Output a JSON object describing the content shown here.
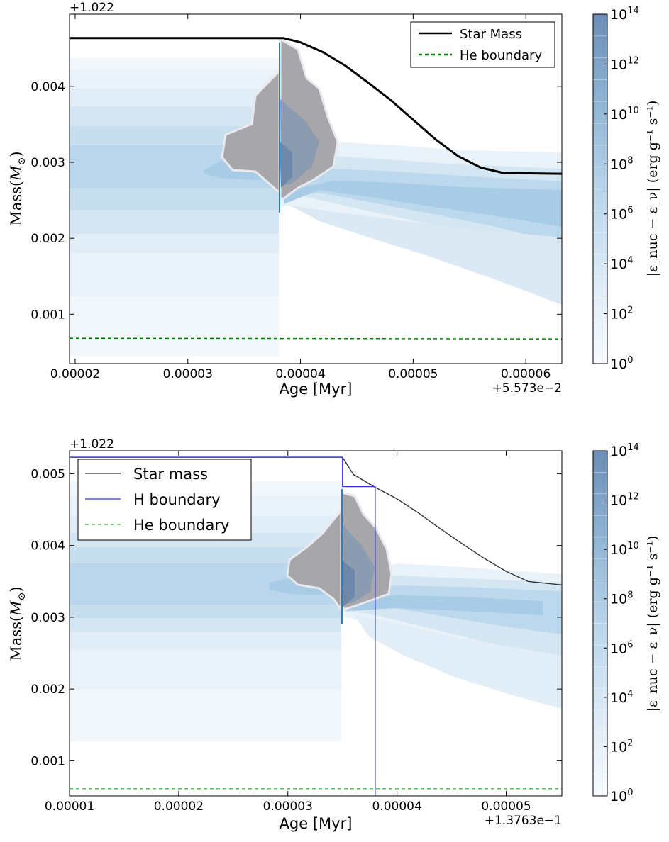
{
  "chart_data": [
    {
      "type": "area",
      "title": "",
      "xlabel": "Age [Myr]",
      "ylabel": "Mass(M_⊙)",
      "x_offset_label": "+5.573e−2",
      "y_offset_label": "+1.022",
      "xlim": [
        1.95e-05,
        6.32e-05
      ],
      "ylim": [
        0.00035,
        0.00495
      ],
      "xticks": [
        {
          "value": 2e-05,
          "label": "0.00002"
        },
        {
          "value": 3e-05,
          "label": "0.00003"
        },
        {
          "value": 4e-05,
          "label": "0.00004"
        },
        {
          "value": 5e-05,
          "label": "0.00005"
        },
        {
          "value": 6e-05,
          "label": "0.00006"
        }
      ],
      "yticks": [
        {
          "value": 0.001,
          "label": "0.001"
        },
        {
          "value": 0.002,
          "label": "0.002"
        },
        {
          "value": 0.003,
          "label": "0.003"
        },
        {
          "value": 0.004,
          "label": "0.004"
        }
      ],
      "legend_position": "top-right",
      "grid": false,
      "colors": {
        "star_mass": "#000000",
        "he_boundary": "#008000",
        "burning": "#5b9bd5",
        "flash": "#9a9aa0"
      },
      "series": [
        {
          "name": "Star Mass",
          "style": "solid",
          "x": [
            1.95e-05,
            3.85e-05,
            4e-05,
            4.2e-05,
            4.4e-05,
            4.6e-05,
            4.8e-05,
            5e-05,
            5.2e-05,
            5.4e-05,
            5.6e-05,
            5.8e-05,
            6.32e-05
          ],
          "y": [
            0.004635,
            0.004635,
            0.00458,
            0.00445,
            0.00427,
            0.00405,
            0.00382,
            0.00356,
            0.0033,
            0.00308,
            0.00293,
            0.00286,
            0.00285
          ]
        },
        {
          "name": "He boundary",
          "style": "dashed",
          "x": [
            1.95e-05,
            6.32e-05
          ],
          "y": [
            0.00068,
            0.00067
          ]
        }
      ]
    },
    {
      "type": "area",
      "title": "",
      "xlabel": "Age [Myr]",
      "ylabel": "Mass(M_⊙)",
      "x_offset_label": "+1.3763e−1",
      "y_offset_label": "+1.022",
      "xlim": [
        1e-05,
        5.51e-05
      ],
      "ylim": [
        0.00051,
        0.00532
      ],
      "xticks": [
        {
          "value": 1e-05,
          "label": "0.00001"
        },
        {
          "value": 2e-05,
          "label": "0.00002"
        },
        {
          "value": 3e-05,
          "label": "0.00003"
        },
        {
          "value": 4e-05,
          "label": "0.00004"
        },
        {
          "value": 5e-05,
          "label": "0.00005"
        }
      ],
      "yticks": [
        {
          "value": 0.001,
          "label": "0.001"
        },
        {
          "value": 0.002,
          "label": "0.002"
        },
        {
          "value": 0.003,
          "label": "0.003"
        },
        {
          "value": 0.004,
          "label": "0.004"
        },
        {
          "value": 0.005,
          "label": "0.005"
        }
      ],
      "legend_position": "top-left",
      "grid": false,
      "colors": {
        "star_mass": "#333333",
        "h_boundary": "#3333cc",
        "he_boundary": "#33aa33",
        "burning": "#5b9bd5",
        "flash": "#9a9aa0"
      },
      "series": [
        {
          "name": "Star mass",
          "style": "solid",
          "x": [
            1e-05,
            3.5e-05,
            3.6e-05,
            3.8e-05,
            4e-05,
            4.2e-05,
            4.4e-05,
            4.6e-05,
            4.8e-05,
            5e-05,
            5.2e-05,
            5.51e-05
          ],
          "y": [
            0.00523,
            0.00523,
            0.00499,
            0.00481,
            0.00465,
            0.00445,
            0.00423,
            0.00402,
            0.00382,
            0.00364,
            0.0035,
            0.00345
          ]
        },
        {
          "name": "H boundary",
          "style": "solid",
          "x": [
            1e-05,
            3.5e-05,
            3.5e-05,
            3.8e-05,
            3.8e-05
          ],
          "y": [
            0.00523,
            0.00523,
            0.00482,
            0.00482,
            0.00051
          ]
        },
        {
          "name": "He boundary",
          "style": "dashed",
          "x": [
            1e-05,
            5.51e-05
          ],
          "y": [
            0.00061,
            0.00061
          ]
        }
      ]
    }
  ],
  "colorbar": {
    "label": "|ε_nuc − ε_ν|  (erg g⁻¹ s⁻¹)",
    "ticks": [
      {
        "exp": "0",
        "value": 1
      },
      {
        "exp": "2",
        "value": 100
      },
      {
        "exp": "4",
        "value": 10000
      },
      {
        "exp": "6",
        "value": 1000000
      },
      {
        "exp": "8",
        "value": 100000000
      },
      {
        "exp": "10",
        "value": 10000000000
      },
      {
        "exp": "12",
        "value": 1000000000000
      },
      {
        "exp": "14",
        "value": 100000000000000
      }
    ],
    "colors": [
      "#f7fbff",
      "#e3eef8",
      "#cfe1f2",
      "#b5d4e9",
      "#93c3df",
      "#6daed5",
      "#4b97c9",
      "#2f7ebc"
    ]
  }
}
